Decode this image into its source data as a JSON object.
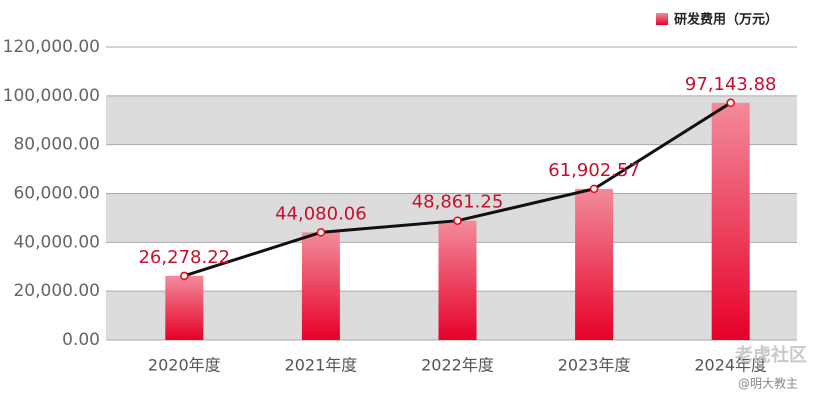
{
  "chart_data": {
    "type": "bar",
    "categories": [
      "2020年度",
      "2021年度",
      "2022年度",
      "2023年度",
      "2024年度"
    ],
    "series": [
      {
        "name": "研发费用（万元）",
        "color": "#e60028",
        "values": [
          26278.22,
          44080.06,
          48861.25,
          61902.57,
          97143.88
        ],
        "value_labels": [
          "26,278.22",
          "44,080.06",
          "48,861.25",
          "61,902.57",
          "97,143.88"
        ]
      }
    ],
    "line_overlay": true,
    "line_color": "#111111",
    "ylim": [
      0,
      120000
    ],
    "yticks": [
      {
        "value": 0,
        "label": "0.00"
      },
      {
        "value": 20000,
        "label": "20,000.00"
      },
      {
        "value": 40000,
        "label": "40,000.00"
      },
      {
        "value": 60000,
        "label": "60,000.00"
      },
      {
        "value": 80000,
        "label": "80,000.00"
      },
      {
        "value": 100000,
        "label": "100,000.00"
      },
      {
        "value": 120000,
        "label": "120,000.00"
      }
    ],
    "grid": true,
    "bands": true,
    "legend": "top-right",
    "watermark": [
      "老虎社区",
      "@明大教主"
    ]
  }
}
